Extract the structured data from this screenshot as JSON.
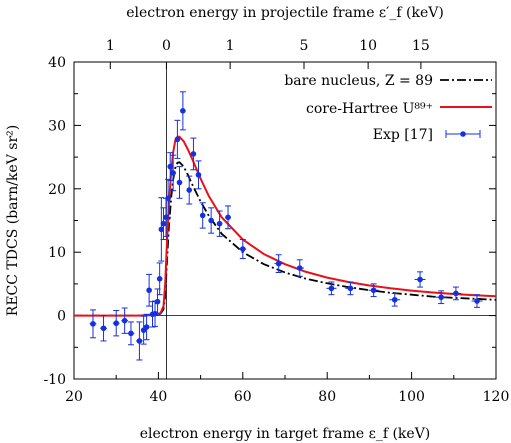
{
  "chart_data": {
    "type": "line",
    "title": "",
    "xlabel": "electron energy in target frame ε_f (keV)",
    "ylabel": "RECC TDCS (barn/keV sr²)",
    "x2label": "electron energy in projectile frame ε′_f (keV)",
    "xlim": [
      20,
      120
    ],
    "ylim": [
      -10,
      40
    ],
    "x_ticks": [
      20,
      40,
      60,
      80,
      100,
      120
    ],
    "y_ticks": [
      -10,
      0,
      10,
      20,
      30,
      40
    ],
    "top_ticks": [
      {
        "label": "1",
        "x": 28.6
      },
      {
        "label": "0",
        "x": 41.9
      },
      {
        "label": "1",
        "x": 57.0
      },
      {
        "label": "5",
        "x": 74.5
      },
      {
        "label": "10",
        "x": 89.7
      },
      {
        "label": "15",
        "x": 102.2
      }
    ],
    "vertical_line_x": 41.9,
    "grid": false,
    "legend_position": "top-right",
    "series": [
      {
        "name": "bare nucleus, Z = 89",
        "style": "dashdot",
        "color": "#000000",
        "x": [
          20,
          35,
          39,
          40.5,
          41.2,
          41.6,
          42,
          42.5,
          43,
          43.5,
          44,
          44.5,
          45,
          46,
          47,
          48,
          50,
          52,
          55,
          60,
          65,
          70,
          75,
          80,
          85,
          90,
          95,
          100,
          105,
          110,
          115,
          120
        ],
        "y": [
          0,
          0,
          0.1,
          0.3,
          1,
          3,
          8,
          14,
          18.5,
          21.5,
          23.3,
          24.1,
          24.2,
          23.5,
          22.2,
          20.7,
          18,
          15.7,
          12.9,
          10,
          8.1,
          6.8,
          5.8,
          5.1,
          4.5,
          4.0,
          3.6,
          3.3,
          3.0,
          2.8,
          2.65,
          2.5
        ]
      },
      {
        "name": "core-Hartree U⁸⁹⁺",
        "style": "solid",
        "color": "#e8111a",
        "x": [
          20,
          35,
          39,
          40.5,
          41.2,
          41.6,
          42,
          42.5,
          43,
          43.5,
          44,
          44.5,
          45,
          46,
          47,
          48,
          50,
          52,
          55,
          60,
          65,
          70,
          75,
          80,
          85,
          90,
          95,
          100,
          105,
          110,
          115,
          120
        ],
        "y": [
          0,
          0,
          0.1,
          0.4,
          1.5,
          5,
          11,
          17.5,
          22.5,
          25.8,
          27.6,
          28.2,
          28.2,
          27.5,
          26.2,
          24.7,
          21.6,
          18.8,
          15.5,
          12,
          9.7,
          8.1,
          6.9,
          6.0,
          5.3,
          4.75,
          4.3,
          3.95,
          3.65,
          3.4,
          3.2,
          3.05
        ]
      },
      {
        "name": "Exp [17]",
        "style": "points",
        "color": "#1530e0",
        "points": [
          {
            "x": 24.5,
            "y": -1.3,
            "ey": 2.2,
            "ex": 0.8
          },
          {
            "x": 27.0,
            "y": -2.0,
            "ey": 2.0,
            "ex": 0.8
          },
          {
            "x": 30.0,
            "y": -1.2,
            "ey": 2.0,
            "ex": 0.8
          },
          {
            "x": 32.0,
            "y": -0.8,
            "ey": 2.0,
            "ex": 0.8
          },
          {
            "x": 33.5,
            "y": -2.8,
            "ey": 1.8,
            "ex": 0.8
          },
          {
            "x": 35.5,
            "y": -4.0,
            "ey": 3.0,
            "ex": 0.8
          },
          {
            "x": 36.5,
            "y": -2.3,
            "ey": 2.2,
            "ex": 0.6
          },
          {
            "x": 37.2,
            "y": -1.8,
            "ey": 2.0,
            "ex": 0.6
          },
          {
            "x": 37.8,
            "y": 4.0,
            "ey": 2.5,
            "ex": 0.6
          },
          {
            "x": 38.6,
            "y": 0.2,
            "ey": 2.0,
            "ex": 0.6
          },
          {
            "x": 39.2,
            "y": 0.3,
            "ey": 2.0,
            "ex": 0.6
          },
          {
            "x": 39.8,
            "y": 2.2,
            "ey": 2.0,
            "ex": 0.6
          },
          {
            "x": 40.3,
            "y": 5.8,
            "ey": 2.5,
            "ex": 0.5
          },
          {
            "x": 40.7,
            "y": 13.6,
            "ey": 5.0,
            "ex": 0.5
          },
          {
            "x": 41.2,
            "y": 14.5,
            "ey": 2.5,
            "ex": 0.5
          },
          {
            "x": 41.8,
            "y": 15.5,
            "ey": 3.0,
            "ex": 0.5
          },
          {
            "x": 42.3,
            "y": 18.5,
            "ey": 3.0,
            "ex": 0.5
          },
          {
            "x": 42.8,
            "y": 23.5,
            "ey": 2.2,
            "ex": 0.5
          },
          {
            "x": 43.5,
            "y": 22.5,
            "ey": 2.8,
            "ex": 0.5
          },
          {
            "x": 44.5,
            "y": 27.8,
            "ey": 3.0,
            "ex": 0.5
          },
          {
            "x": 45.0,
            "y": 21.0,
            "ey": 2.5,
            "ex": 0.5
          },
          {
            "x": 45.8,
            "y": 32.3,
            "ey": 3.0,
            "ex": 0.5
          },
          {
            "x": 47.3,
            "y": 19.8,
            "ey": 2.2,
            "ex": 0.5
          },
          {
            "x": 48.3,
            "y": 25.5,
            "ey": 2.5,
            "ex": 0.5
          },
          {
            "x": 49.5,
            "y": 22.2,
            "ey": 2.2,
            "ex": 0.5
          },
          {
            "x": 50.5,
            "y": 15.8,
            "ey": 2.0,
            "ex": 0.6
          },
          {
            "x": 52.5,
            "y": 15.0,
            "ey": 2.0,
            "ex": 0.6
          },
          {
            "x": 54.5,
            "y": 14.5,
            "ey": 2.0,
            "ex": 0.6
          },
          {
            "x": 56.5,
            "y": 15.5,
            "ey": 1.8,
            "ex": 0.7
          },
          {
            "x": 60.0,
            "y": 10.5,
            "ey": 1.5,
            "ex": 0.8
          },
          {
            "x": 68.5,
            "y": 8.2,
            "ey": 1.4,
            "ex": 1.0
          },
          {
            "x": 73.5,
            "y": 7.5,
            "ey": 1.3,
            "ex": 1.0
          },
          {
            "x": 81.0,
            "y": 4.3,
            "ey": 1.0,
            "ex": 1.2
          },
          {
            "x": 85.5,
            "y": 4.3,
            "ey": 1.0,
            "ex": 1.2
          },
          {
            "x": 91.0,
            "y": 4.0,
            "ey": 1.0,
            "ex": 1.2
          },
          {
            "x": 96.0,
            "y": 2.5,
            "ey": 1.0,
            "ex": 1.3
          },
          {
            "x": 102.0,
            "y": 5.7,
            "ey": 1.2,
            "ex": 1.3
          },
          {
            "x": 107.0,
            "y": 2.9,
            "ey": 1.0,
            "ex": 1.3
          },
          {
            "x": 110.5,
            "y": 3.5,
            "ey": 1.0,
            "ex": 1.3
          },
          {
            "x": 115.5,
            "y": 2.3,
            "ey": 1.0,
            "ex": 1.3
          }
        ]
      }
    ]
  }
}
